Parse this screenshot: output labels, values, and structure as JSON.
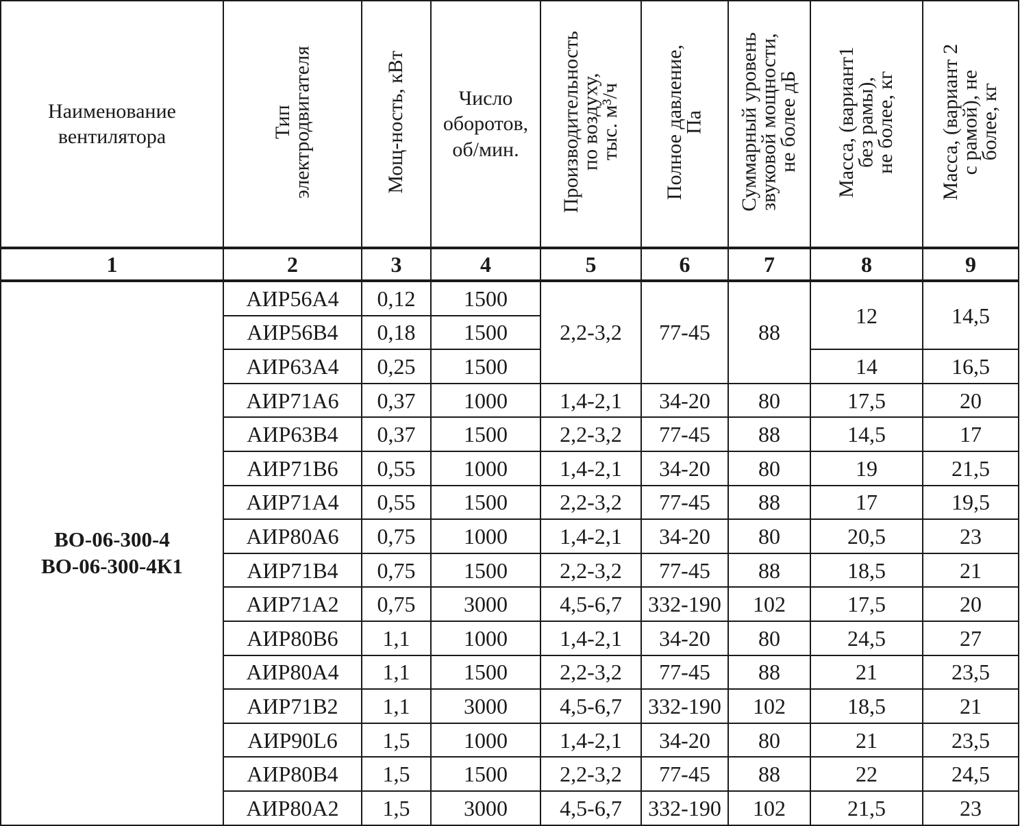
{
  "headers": [
    {
      "label": "Наименование\nвентилятора",
      "rotated": false
    },
    {
      "label": "Тип\nэлектродвигателя",
      "rotated": true
    },
    {
      "label": "Мощ-ность, кВт",
      "rotated": true
    },
    {
      "label": "Число\nоборотов,\nоб/мин.",
      "rotated": false
    },
    {
      "label": "Производительность\nпо воздуху,\nтыс. м³/ч",
      "rotated": true
    },
    {
      "label": "Полное давление,\nПа",
      "rotated": true
    },
    {
      "label": "Суммарный уровень\nзвуковой мощности,\nне более дБ",
      "rotated": true
    },
    {
      "label": "Масса, (вариант1\nбез рамы),\nне более, кг",
      "rotated": true
    },
    {
      "label": "Масса, (вариант 2\nс рамой), не\nболее, кг",
      "rotated": true
    }
  ],
  "column_numbers": [
    "1",
    "2",
    "3",
    "4",
    "5",
    "6",
    "7",
    "8",
    "9"
  ],
  "fan_name": "ВО-06-300-4\nВО-06-300-4К1",
  "rows": [
    [
      "АИР56А4",
      "0,12",
      "1500",
      "2,2-3,2",
      "77-45",
      "88",
      "12",
      "14,5"
    ],
    [
      "АИР56В4",
      "0,18",
      "1500",
      null,
      null,
      null,
      null,
      null
    ],
    [
      "АИР63А4",
      "0,25",
      "1500",
      null,
      null,
      null,
      "14",
      "16,5"
    ],
    [
      "АИР71А6",
      "0,37",
      "1000",
      "1,4-2,1",
      "34-20",
      "80",
      "17,5",
      "20"
    ],
    [
      "АИР63В4",
      "0,37",
      "1500",
      "2,2-3,2",
      "77-45",
      "88",
      "14,5",
      "17"
    ],
    [
      "АИР71В6",
      "0,55",
      "1000",
      "1,4-2,1",
      "34-20",
      "80",
      "19",
      "21,5"
    ],
    [
      "АИР71А4",
      "0,55",
      "1500",
      "2,2-3,2",
      "77-45",
      "88",
      "17",
      "19,5"
    ],
    [
      "АИР80А6",
      "0,75",
      "1000",
      "1,4-2,1",
      "34-20",
      "80",
      "20,5",
      "23"
    ],
    [
      "АИР71В4",
      "0,75",
      "1500",
      "2,2-3,2",
      "77-45",
      "88",
      "18,5",
      "21"
    ],
    [
      "АИР71А2",
      "0,75",
      "3000",
      "4,5-6,7",
      "332-190",
      "102",
      "17,5",
      "20"
    ],
    [
      "АИР80В6",
      "1,1",
      "1000",
      "1,4-2,1",
      "34-20",
      "80",
      "24,5",
      "27"
    ],
    [
      "АИР80А4",
      "1,1",
      "1500",
      "2,2-3,2",
      "77-45",
      "88",
      "21",
      "23,5"
    ],
    [
      "АИР71В2",
      "1,1",
      "3000",
      "4,5-6,7",
      "332-190",
      "102",
      "18,5",
      "21"
    ],
    [
      "АИР90L6",
      "1,5",
      "1000",
      "1,4-2,1",
      "34-20",
      "80",
      "21",
      "23,5"
    ],
    [
      "АИР80В4",
      "1,5",
      "1500",
      "2,2-3,2",
      "77-45",
      "88",
      "22",
      "24,5"
    ],
    [
      "АИР80А2",
      "1,5",
      "3000",
      "4,5-6,7",
      "332-190",
      "102",
      "21,5",
      "23"
    ]
  ]
}
